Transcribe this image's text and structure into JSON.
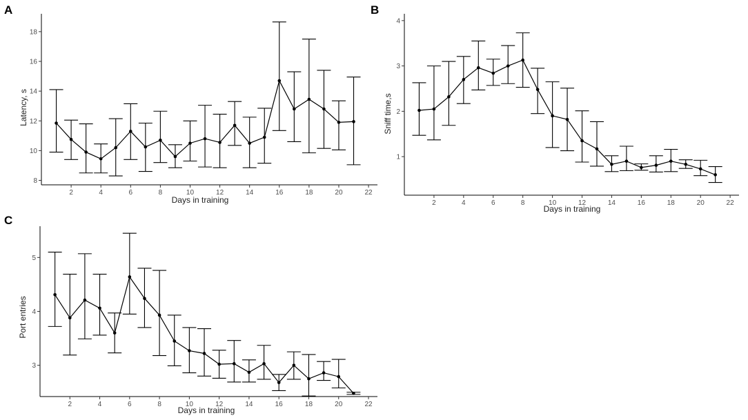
{
  "chart_data": [
    {
      "id": "A",
      "panel_label": "A",
      "type": "line",
      "xlabel": "Days in training",
      "ylabel": "Latency, s",
      "xlim": [
        0,
        22.6
      ],
      "ylim": [
        7.7,
        19.2
      ],
      "xticks": [
        2,
        4,
        6,
        8,
        10,
        12,
        14,
        16,
        18,
        20,
        22
      ],
      "yticks": [
        8,
        10,
        12,
        14,
        16,
        18
      ],
      "x": [
        1,
        2,
        3,
        4,
        5,
        6,
        7,
        8,
        9,
        10,
        11,
        12,
        13,
        14,
        15,
        16,
        17,
        18,
        19,
        20,
        21
      ],
      "y": [
        11.85,
        10.75,
        9.9,
        9.45,
        10.2,
        11.3,
        10.25,
        10.7,
        9.6,
        10.5,
        10.8,
        10.55,
        11.7,
        10.5,
        10.9,
        14.7,
        12.8,
        13.45,
        12.8,
        11.9,
        11.95
      ],
      "err_low": [
        9.9,
        9.4,
        8.5,
        8.5,
        8.3,
        9.4,
        8.6,
        9.2,
        8.85,
        9.3,
        8.9,
        8.85,
        10.35,
        8.85,
        9.15,
        11.35,
        10.6,
        9.85,
        10.15,
        10.05,
        9.05
      ],
      "err_high": [
        14.1,
        12.05,
        11.8,
        10.45,
        12.15,
        13.15,
        11.85,
        12.65,
        10.4,
        12.0,
        13.05,
        12.45,
        13.3,
        12.25,
        12.85,
        18.65,
        15.3,
        17.5,
        15.4,
        13.35,
        14.95
      ]
    },
    {
      "id": "B",
      "panel_label": "B",
      "type": "line",
      "xlabel": "Days in training",
      "ylabel": "Sniff time,s",
      "xlim": [
        0,
        22.6
      ],
      "ylim": [
        0.15,
        4.15
      ],
      "xticks": [
        2,
        4,
        6,
        8,
        10,
        12,
        14,
        16,
        18,
        20,
        22
      ],
      "yticks": [
        1,
        2,
        3,
        4
      ],
      "x": [
        1,
        2,
        3,
        4,
        5,
        6,
        7,
        8,
        9,
        10,
        11,
        12,
        13,
        14,
        15,
        16,
        17,
        18,
        19,
        20,
        21
      ],
      "y": [
        2.02,
        2.05,
        2.32,
        2.7,
        2.96,
        2.84,
        3.0,
        3.13,
        2.48,
        1.9,
        1.82,
        1.35,
        1.17,
        0.83,
        0.9,
        0.76,
        0.81,
        0.9,
        0.83,
        0.73,
        0.6
      ],
      "err_low": [
        1.47,
        1.37,
        1.69,
        2.17,
        2.47,
        2.57,
        2.61,
        2.53,
        1.95,
        1.2,
        1.13,
        0.88,
        0.79,
        0.67,
        0.69,
        0.7,
        0.66,
        0.67,
        0.74,
        0.58,
        0.43
      ],
      "err_high": [
        2.63,
        3.0,
        3.1,
        3.21,
        3.55,
        3.15,
        3.45,
        3.73,
        2.95,
        2.65,
        2.51,
        2.01,
        1.77,
        1.02,
        1.23,
        0.84,
        1.02,
        1.16,
        0.93,
        0.92,
        0.78
      ]
    },
    {
      "id": "C",
      "panel_label": "C",
      "type": "line",
      "xlabel": "Days in training",
      "ylabel": "Port entries",
      "xlim": [
        0,
        22.6
      ],
      "ylim": [
        2.42,
        5.58
      ],
      "xticks": [
        2,
        4,
        6,
        8,
        10,
        12,
        14,
        16,
        18,
        20,
        22
      ],
      "yticks": [
        3,
        4,
        5
      ],
      "x": [
        1,
        2,
        3,
        4,
        5,
        6,
        7,
        8,
        9,
        10,
        11,
        12,
        13,
        14,
        15,
        16,
        17,
        18,
        19,
        20,
        21
      ],
      "y": [
        4.31,
        3.88,
        4.21,
        4.06,
        3.6,
        4.64,
        4.24,
        3.93,
        3.45,
        3.27,
        3.22,
        3.02,
        3.03,
        2.87,
        3.03,
        2.68,
        3.0,
        2.75,
        2.86,
        2.79,
        2.48
      ],
      "err_low": [
        3.72,
        3.19,
        3.49,
        3.56,
        3.23,
        3.95,
        3.7,
        3.18,
        2.99,
        2.86,
        2.8,
        2.76,
        2.69,
        2.69,
        2.74,
        2.53,
        2.74,
        2.43,
        2.72,
        2.58,
        2.46
      ],
      "err_high": [
        5.1,
        4.69,
        5.07,
        4.69,
        3.97,
        5.45,
        4.8,
        4.76,
        3.93,
        3.7,
        3.68,
        3.28,
        3.46,
        3.1,
        3.37,
        2.83,
        3.25,
        3.2,
        3.07,
        3.11,
        2.5
      ]
    }
  ]
}
